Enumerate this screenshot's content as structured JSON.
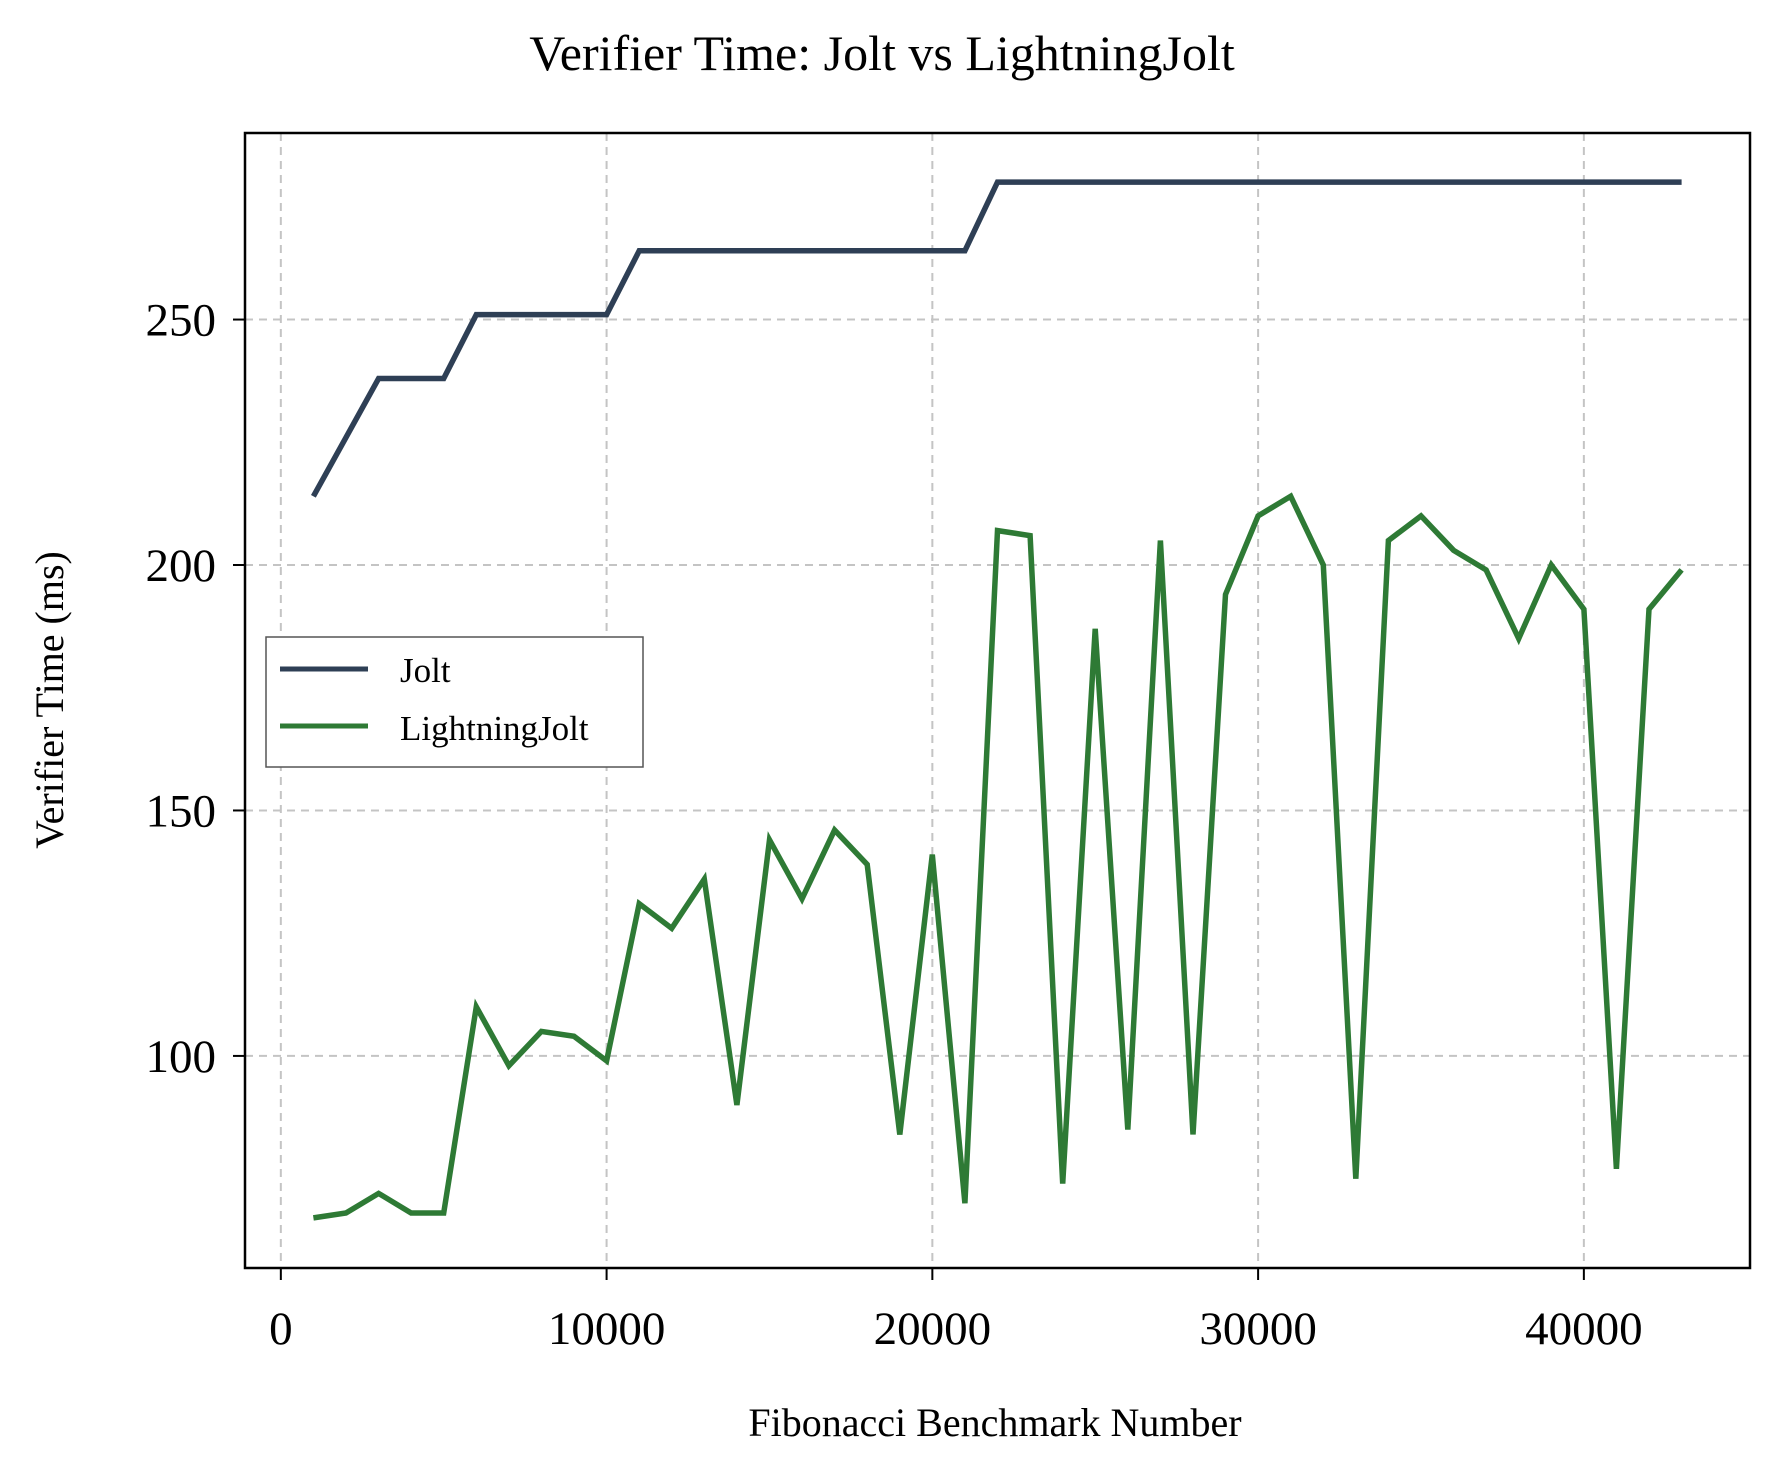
{
  "chart_data": {
    "type": "line",
    "title": "Verifier Time: Jolt vs LightningJolt",
    "xlabel": "Fibonacci Benchmark Number",
    "ylabel": "Verifier Time (ms)",
    "xlim": [
      -1100,
      45100
    ],
    "ylim": [
      56.8,
      288
    ],
    "xticks": [
      0,
      10000,
      20000,
      30000,
      40000
    ],
    "yticks": [
      100,
      150,
      200,
      250
    ],
    "grid": true,
    "legend_position": "center-left",
    "x": [
      1000,
      2000,
      3000,
      4000,
      5000,
      6000,
      7000,
      8000,
      9000,
      10000,
      11000,
      12000,
      13000,
      14000,
      15000,
      16000,
      17000,
      18000,
      19000,
      20000,
      21000,
      22000,
      23000,
      24000,
      25000,
      26000,
      27000,
      28000,
      29000,
      30000,
      31000,
      32000,
      33000,
      34000,
      35000,
      36000,
      37000,
      38000,
      39000,
      40000,
      41000,
      42000,
      43000
    ],
    "series": [
      {
        "name": "Jolt",
        "color": "#2e3f55",
        "values": [
          214,
          226,
          238,
          238,
          238,
          251,
          251,
          251,
          251,
          251,
          264,
          264,
          264,
          264,
          264,
          264,
          264,
          264,
          264,
          264,
          264,
          278,
          278,
          278,
          278,
          278,
          278,
          278,
          278,
          278,
          278,
          278,
          278,
          278,
          278,
          278,
          278,
          278,
          278,
          278,
          278,
          278,
          278
        ]
      },
      {
        "name": "LightningJolt",
        "color": "#2e7a35",
        "values": [
          67,
          68,
          72,
          68,
          68,
          110,
          98,
          105,
          104,
          99,
          131,
          126,
          136,
          90,
          144,
          132,
          146,
          139,
          84,
          141,
          70,
          207,
          206,
          74,
          187,
          85,
          205,
          84,
          194,
          210,
          214,
          200,
          75,
          205,
          210,
          203,
          199,
          185,
          200,
          191,
          77,
          191,
          199
        ]
      }
    ]
  }
}
